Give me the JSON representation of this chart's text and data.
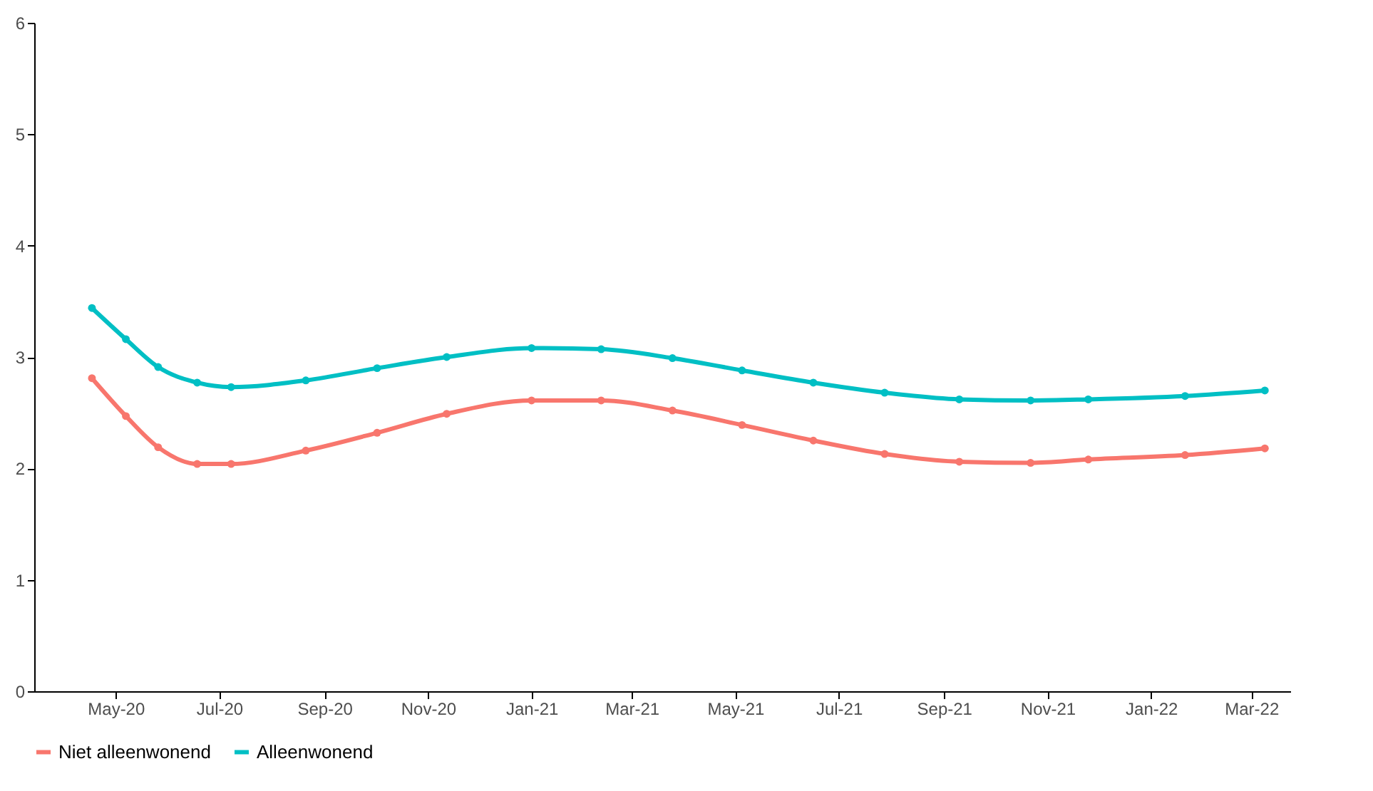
{
  "chart_data": {
    "type": "line",
    "x": [
      "2020-04-17",
      "2020-05-07",
      "2020-05-26",
      "2020-06-18",
      "2020-07-08",
      "2020-08-21",
      "2020-10-02",
      "2020-11-12",
      "2021-01-01",
      "2021-02-11",
      "2021-03-25",
      "2021-05-05",
      "2021-06-16",
      "2021-07-28",
      "2021-09-10",
      "2021-10-22",
      "2021-11-25",
      "2022-01-21",
      "2022-03-09"
    ],
    "series": [
      {
        "name": "Niet alleenwonend",
        "color": "#f8766d",
        "values": [
          2.81,
          2.47,
          2.19,
          2.04,
          2.04,
          2.16,
          2.32,
          2.49,
          2.61,
          2.61,
          2.52,
          2.39,
          2.25,
          2.13,
          2.06,
          2.05,
          2.08,
          2.12,
          2.18
        ]
      },
      {
        "name": "Alleenwonend",
        "color": "#00bfc4",
        "values": [
          3.44,
          3.16,
          2.91,
          2.77,
          2.73,
          2.79,
          2.9,
          3.0,
          3.08,
          3.07,
          2.99,
          2.88,
          2.77,
          2.68,
          2.62,
          2.61,
          2.62,
          2.65,
          2.7
        ]
      }
    ],
    "xlim": [
      "2020-03-14",
      "2022-03-24"
    ],
    "xticks": [
      {
        "value": "2020-05-01",
        "label": "May-20"
      },
      {
        "value": "2020-07-01",
        "label": "Jul-20"
      },
      {
        "value": "2020-09-01",
        "label": "Sep-20"
      },
      {
        "value": "2020-11-01",
        "label": "Nov-20"
      },
      {
        "value": "2021-01-01",
        "label": "Jan-21"
      },
      {
        "value": "2021-03-01",
        "label": "Mar-21"
      },
      {
        "value": "2021-05-01",
        "label": "May-21"
      },
      {
        "value": "2021-07-01",
        "label": "Jul-21"
      },
      {
        "value": "2021-09-01",
        "label": "Sep-21"
      },
      {
        "value": "2021-11-01",
        "label": "Nov-21"
      },
      {
        "value": "2022-01-01",
        "label": "Jan-22"
      },
      {
        "value": "2022-03-01",
        "label": "Mar-22"
      }
    ],
    "ylim": [
      0,
      6
    ],
    "yticks": [
      0,
      1,
      2,
      3,
      4,
      5,
      6
    ],
    "grid": false,
    "legend": "bottom",
    "marker": "circle",
    "line_style": "solid"
  }
}
